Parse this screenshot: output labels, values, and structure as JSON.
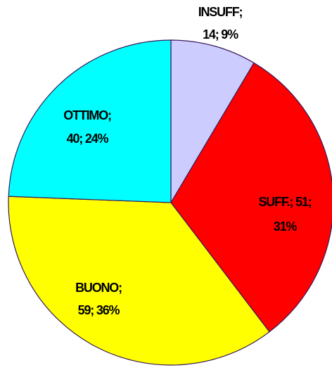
{
  "chart_data": {
    "type": "pie",
    "values": [
      14,
      51,
      59,
      40
    ],
    "value_labels": [
      [
        "INSUFF;",
        "14; 9%"
      ],
      [
        "SUFF.; 51;",
        "31%"
      ],
      [
        "BUONO;",
        "59; 36%"
      ],
      [
        "OTTIMO;",
        "40; 24%"
      ]
    ],
    "colors": [
      "#ccccff",
      "#ff0000",
      "#ffff00",
      "#00ffff"
    ],
    "start_angle": 90,
    "direction": "clockwise"
  }
}
